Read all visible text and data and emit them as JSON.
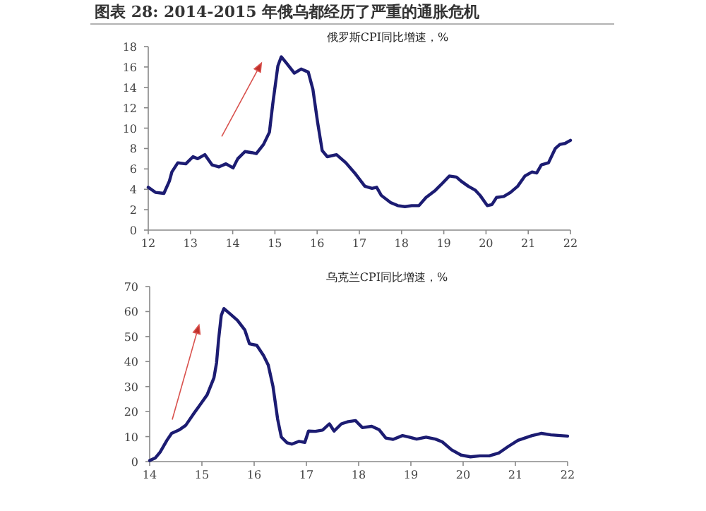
{
  "chart_data": [
    {
      "type": "line",
      "title": "图表 28: 2014-2015 年俄乌都经历了严重的通胀危机",
      "subtitle": "俄罗斯CPI同比增速，%",
      "grid": false,
      "marker": "none",
      "line_style": "solid",
      "xlim": [
        12,
        22
      ],
      "xticks": [
        12,
        13,
        14,
        15,
        16,
        17,
        18,
        19,
        20,
        21,
        22
      ],
      "ylim": [
        0,
        18
      ],
      "yticks": [
        0,
        2,
        4,
        6,
        8,
        10,
        12,
        14,
        16,
        18
      ],
      "x": [
        12.0,
        12.17,
        12.37,
        12.5,
        12.56,
        12.7,
        12.89,
        13.06,
        13.17,
        13.34,
        13.51,
        13.67,
        13.84,
        14.01,
        14.12,
        14.29,
        14.45,
        14.56,
        14.73,
        14.87,
        14.95,
        15.07,
        15.15,
        15.29,
        15.46,
        15.62,
        15.79,
        15.9,
        16.01,
        16.12,
        16.24,
        16.46,
        16.68,
        16.91,
        17.13,
        17.3,
        17.41,
        17.52,
        17.74,
        17.91,
        18.08,
        18.24,
        18.41,
        18.58,
        18.8,
        18.97,
        19.13,
        19.3,
        19.41,
        19.58,
        19.75,
        19.86,
        20.03,
        20.14,
        20.25,
        20.42,
        20.58,
        20.75,
        20.92,
        21.09,
        21.2,
        21.31,
        21.48,
        21.64,
        21.75,
        21.87,
        22.0
      ],
      "series": [
        {
          "color": "#1c1c72",
          "values": [
            4.2,
            3.7,
            3.6,
            4.8,
            5.7,
            6.6,
            6.5,
            7.2,
            7.0,
            7.4,
            6.4,
            6.2,
            6.5,
            6.1,
            7.0,
            7.7,
            7.6,
            7.5,
            8.4,
            9.6,
            12.4,
            16.1,
            17.0,
            16.3,
            15.4,
            15.8,
            15.5,
            13.8,
            10.6,
            7.8,
            7.2,
            7.4,
            6.6,
            5.5,
            4.3,
            4.1,
            4.2,
            3.4,
            2.7,
            2.4,
            2.3,
            2.4,
            2.4,
            3.2,
            3.9,
            4.6,
            5.3,
            5.2,
            4.8,
            4.3,
            3.9,
            3.4,
            2.4,
            2.5,
            3.2,
            3.3,
            3.7,
            4.3,
            5.3,
            5.7,
            5.6,
            6.4,
            6.6,
            8.0,
            8.4,
            8.5,
            8.8
          ]
        }
      ]
    },
    {
      "type": "line",
      "title": "乌克兰CPI同比增速，%",
      "grid": false,
      "marker": "none",
      "line_style": "solid",
      "xlim": [
        14,
        22
      ],
      "xticks": [
        14,
        15,
        16,
        17,
        18,
        19,
        20,
        21,
        22
      ],
      "ylim": [
        0,
        70
      ],
      "yticks": [
        0,
        10,
        20,
        30,
        40,
        50,
        60,
        70
      ],
      "x": [
        14.0,
        14.11,
        14.2,
        14.33,
        14.42,
        14.56,
        14.69,
        14.83,
        14.96,
        15.1,
        15.23,
        15.28,
        15.32,
        15.37,
        15.42,
        15.55,
        15.68,
        15.82,
        15.91,
        16.05,
        16.18,
        16.27,
        16.36,
        16.45,
        16.52,
        16.63,
        16.72,
        16.86,
        16.97,
        17.04,
        17.17,
        17.31,
        17.44,
        17.53,
        17.67,
        17.8,
        17.94,
        18.07,
        18.25,
        18.39,
        18.52,
        18.66,
        18.84,
        18.97,
        19.11,
        19.29,
        19.47,
        19.6,
        19.78,
        19.96,
        20.14,
        20.32,
        20.5,
        20.68,
        20.86,
        21.05,
        21.18,
        21.32,
        21.5,
        21.68,
        21.86,
        22.0
      ],
      "series": [
        {
          "color": "#1c1c72",
          "values": [
            0.4,
            1.5,
            3.8,
            8.5,
            11.3,
            12.6,
            14.5,
            18.8,
            22.6,
            26.7,
            33.5,
            39.5,
            49,
            58.4,
            61.2,
            58.9,
            56.5,
            52.7,
            47.1,
            46.5,
            42.4,
            38.6,
            30.1,
            16.9,
            9.8,
            7.5,
            7.0,
            8.1,
            7.7,
            12.2,
            12.1,
            12.6,
            15.1,
            12.2,
            15.1,
            16.0,
            16.4,
            13.6,
            14.1,
            12.8,
            9.4,
            8.9,
            10.4,
            9.8,
            9.0,
            9.8,
            9.0,
            7.9,
            4.7,
            2.6,
            1.9,
            2.3,
            2.3,
            3.4,
            6.0,
            8.5,
            9.4,
            10.4,
            11.3,
            10.7,
            10.4,
            10.2
          ]
        }
      ]
    }
  ]
}
